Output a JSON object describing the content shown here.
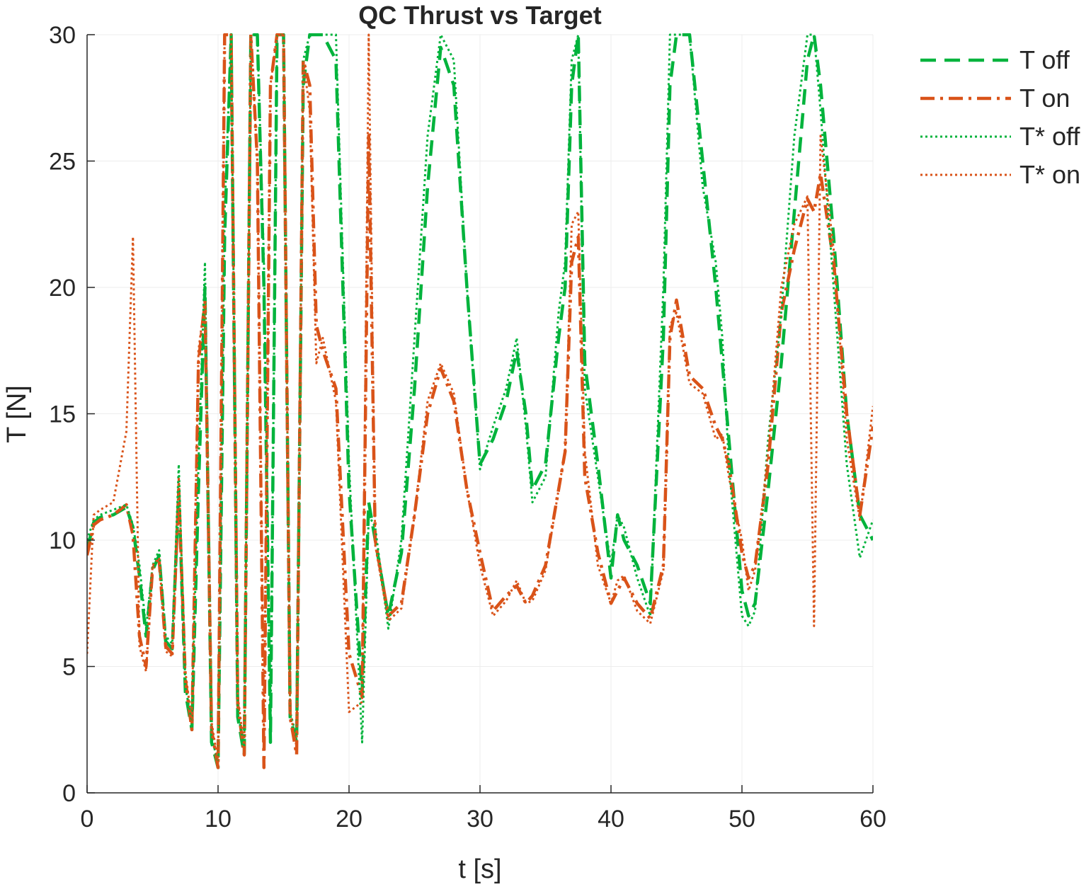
{
  "chart_data": {
    "type": "line",
    "title": "QC Thrust vs Target",
    "xlabel": "t [s]",
    "ylabel": "T [N]",
    "xlim": [
      0,
      60
    ],
    "ylim": [
      0,
      30
    ],
    "xticks": [
      0,
      10,
      20,
      30,
      40,
      50,
      60
    ],
    "yticks": [
      0,
      5,
      10,
      15,
      20,
      25,
      30
    ],
    "grid": true,
    "legend_position": "outside-top-right",
    "series": [
      {
        "name": "T off",
        "color": "#00b33c",
        "style": "dashed",
        "x": [
          0,
          0.5,
          1,
          2,
          3,
          3.5,
          4,
          4.5,
          5,
          5.5,
          6,
          6.5,
          7,
          7.5,
          8,
          8.5,
          9,
          9.5,
          10,
          10.5,
          11,
          11.5,
          12,
          12.5,
          13,
          13.5,
          14,
          14.5,
          15,
          15.5,
          16,
          16.5,
          17,
          17.5,
          18,
          19,
          20,
          21,
          21.5,
          22,
          23,
          24,
          25,
          26,
          27,
          28,
          29,
          30,
          31,
          32,
          32.8,
          33.5,
          34,
          35,
          36,
          36.5,
          37,
          37.5,
          38,
          39,
          40,
          40.5,
          41,
          42,
          43,
          44,
          44.5,
          45,
          46,
          47,
          48,
          48.5,
          49,
          50,
          50.5,
          51,
          52,
          53,
          54,
          55,
          55.5,
          56,
          57,
          58,
          59,
          60
        ],
        "values": [
          9.6,
          10.7,
          10.9,
          11.0,
          11.3,
          10.5,
          8.6,
          6.2,
          8.8,
          9.4,
          6.0,
          5.7,
          12.0,
          4.0,
          2.5,
          12.0,
          20.0,
          2.0,
          1.0,
          22.0,
          30.0,
          3.0,
          1.5,
          30.0,
          30.0,
          20.0,
          2.0,
          30.0,
          30.0,
          3.0,
          2.0,
          28.0,
          30.0,
          30.0,
          30.0,
          29.0,
          12.0,
          4.0,
          11.5,
          10.0,
          7.0,
          9.5,
          16.0,
          24.0,
          29.5,
          28.0,
          20.0,
          13.0,
          14.0,
          15.5,
          17.5,
          15.0,
          12.0,
          13.0,
          18.0,
          20.0,
          28.0,
          30.0,
          17.0,
          13.0,
          8.5,
          11.0,
          10.0,
          9.0,
          7.5,
          18.0,
          28.0,
          30.0,
          30.0,
          25.0,
          20.0,
          17.0,
          14.0,
          8.0,
          7.0,
          7.5,
          12.0,
          17.0,
          23.0,
          29.0,
          30.0,
          28.0,
          22.0,
          15.0,
          11.0,
          10.0
        ]
      },
      {
        "name": "T on",
        "color": "#d95319",
        "style": "dashdot",
        "x": [
          0,
          0.5,
          1,
          2,
          3,
          3.5,
          4,
          4.5,
          5,
          5.5,
          6,
          6.5,
          7,
          7.5,
          8,
          8.5,
          9,
          9.5,
          10,
          10.5,
          11,
          11.5,
          12,
          12.5,
          13,
          13.5,
          14,
          14.5,
          15,
          15.5,
          16,
          16.5,
          17,
          17.5,
          18,
          19,
          20,
          21,
          21.5,
          22,
          23,
          24,
          25,
          26,
          27,
          28,
          29,
          30,
          31,
          32,
          32.8,
          33.5,
          34,
          35,
          36,
          36.5,
          37,
          37.5,
          38,
          39,
          40,
          40.5,
          41,
          42,
          43,
          44,
          44.5,
          45,
          46,
          47,
          48,
          48.5,
          49,
          50,
          50.5,
          51,
          52,
          53,
          54,
          55,
          55.5,
          56,
          57,
          58,
          59,
          60
        ],
        "values": [
          9.4,
          10.6,
          10.8,
          11.0,
          11.4,
          10.2,
          6.2,
          5.0,
          8.9,
          9.2,
          5.8,
          5.5,
          12.0,
          4.5,
          2.5,
          17.0,
          19.5,
          2.5,
          1.0,
          30.0,
          30.0,
          3.5,
          1.5,
          30.0,
          25.0,
          1.0,
          28.0,
          30.0,
          30.0,
          3.0,
          1.5,
          29.0,
          28.0,
          18.5,
          17.5,
          16.0,
          5.5,
          3.8,
          26.0,
          10.0,
          7.0,
          7.5,
          11.0,
          15.0,
          16.8,
          15.5,
          12.0,
          9.5,
          7.2,
          7.8,
          8.2,
          7.5,
          7.8,
          9.0,
          12.0,
          13.5,
          21.0,
          22.0,
          12.5,
          9.5,
          7.5,
          8.0,
          8.5,
          7.5,
          6.9,
          9.0,
          18.0,
          19.5,
          16.5,
          16.0,
          14.5,
          14.0,
          13.0,
          9.5,
          8.5,
          9.0,
          13.0,
          19.0,
          21.5,
          23.5,
          23.0,
          24.5,
          21.0,
          15.0,
          11.0,
          14.5
        ]
      },
      {
        "name": "T* off",
        "color": "#00b33c",
        "style": "dotted",
        "x": [
          0,
          0.5,
          1,
          2,
          3,
          3.5,
          4,
          4.5,
          5,
          5.5,
          6,
          6.5,
          7,
          7.5,
          8,
          8.5,
          9,
          9.5,
          10,
          10.5,
          11,
          11.5,
          12,
          12.5,
          13,
          13.5,
          14,
          14.5,
          15,
          15.5,
          16,
          16.5,
          17,
          17.5,
          18,
          19,
          20,
          21,
          21.5,
          22,
          23,
          24,
          25,
          26,
          27,
          28,
          29,
          30,
          31,
          32,
          32.8,
          33.5,
          34,
          35,
          36,
          36.5,
          37,
          37.5,
          38,
          39,
          40,
          40.5,
          41,
          42,
          43,
          44,
          44.5,
          45,
          46,
          47,
          48,
          48.5,
          49,
          50,
          50.5,
          51,
          52,
          53,
          54,
          55,
          55.5,
          56,
          57,
          58,
          59,
          60
        ],
        "values": [
          10.0,
          10.8,
          11.0,
          11.2,
          11.4,
          10.6,
          9.0,
          6.5,
          9.0,
          9.6,
          6.2,
          5.9,
          13.0,
          4.2,
          2.8,
          13.0,
          21.0,
          2.2,
          1.2,
          23.0,
          30.0,
          3.2,
          1.8,
          30.0,
          30.0,
          21.0,
          2.2,
          30.0,
          30.0,
          3.2,
          2.2,
          29.0,
          30.0,
          30.0,
          30.0,
          30.0,
          13.0,
          2.0,
          11.0,
          10.5,
          6.5,
          10.0,
          18.0,
          26.0,
          30.0,
          29.0,
          20.0,
          12.8,
          14.5,
          16.0,
          18.0,
          14.5,
          11.5,
          12.5,
          19.0,
          21.0,
          29.0,
          30.0,
          16.0,
          12.5,
          9.0,
          11.0,
          10.5,
          8.5,
          7.0,
          20.0,
          30.0,
          30.0,
          30.0,
          24.0,
          21.0,
          18.0,
          13.0,
          7.0,
          6.6,
          7.2,
          14.0,
          19.0,
          26.0,
          30.0,
          30.0,
          27.0,
          20.0,
          13.0,
          9.3,
          10.8
        ]
      },
      {
        "name": "T* on",
        "color": "#d95319",
        "style": "dotted",
        "x": [
          0,
          0.5,
          1,
          2,
          3,
          3.5,
          4,
          4.5,
          5,
          5.5,
          6,
          6.5,
          7,
          7.5,
          8,
          8.5,
          9,
          9.5,
          10,
          10.5,
          11,
          11.5,
          12,
          12.5,
          13,
          13.5,
          14,
          14.5,
          15,
          15.5,
          16,
          16.5,
          17,
          17.5,
          18,
          19,
          20,
          21,
          21.5,
          22,
          23,
          24,
          25,
          26,
          27,
          28,
          29,
          30,
          31,
          32,
          32.8,
          33.5,
          34,
          35,
          36,
          36.5,
          37,
          37.5,
          38,
          39,
          40,
          40.5,
          41,
          42,
          43,
          44,
          44.5,
          45,
          46,
          47,
          48,
          48.5,
          49,
          50,
          50.5,
          51,
          52,
          53,
          54,
          55,
          55.5,
          56,
          57,
          58,
          59,
          60
        ],
        "values": [
          5.5,
          11.0,
          11.2,
          11.5,
          14.3,
          22.0,
          5.8,
          4.8,
          9.0,
          9.3,
          5.6,
          5.4,
          12.5,
          4.8,
          2.8,
          17.5,
          19.5,
          2.8,
          1.2,
          30.0,
          30.0,
          3.8,
          1.8,
          30.0,
          25.0,
          2.0,
          28.0,
          30.0,
          30.0,
          3.2,
          1.8,
          29.0,
          27.0,
          17.0,
          18.0,
          15.5,
          3.2,
          3.6,
          30.0,
          9.8,
          6.8,
          7.3,
          11.0,
          15.5,
          17.0,
          15.8,
          12.0,
          9.0,
          7.0,
          7.6,
          8.4,
          7.5,
          7.6,
          8.8,
          12.0,
          13.5,
          22.5,
          23.0,
          13.5,
          9.0,
          7.5,
          8.4,
          8.6,
          7.2,
          6.7,
          8.8,
          18.5,
          19.0,
          16.2,
          15.8,
          14.0,
          14.2,
          12.5,
          10.0,
          8.0,
          8.8,
          13.5,
          20.0,
          22.5,
          23.6,
          6.6,
          26.0,
          21.5,
          14.0,
          10.8,
          15.3
        ]
      }
    ]
  }
}
